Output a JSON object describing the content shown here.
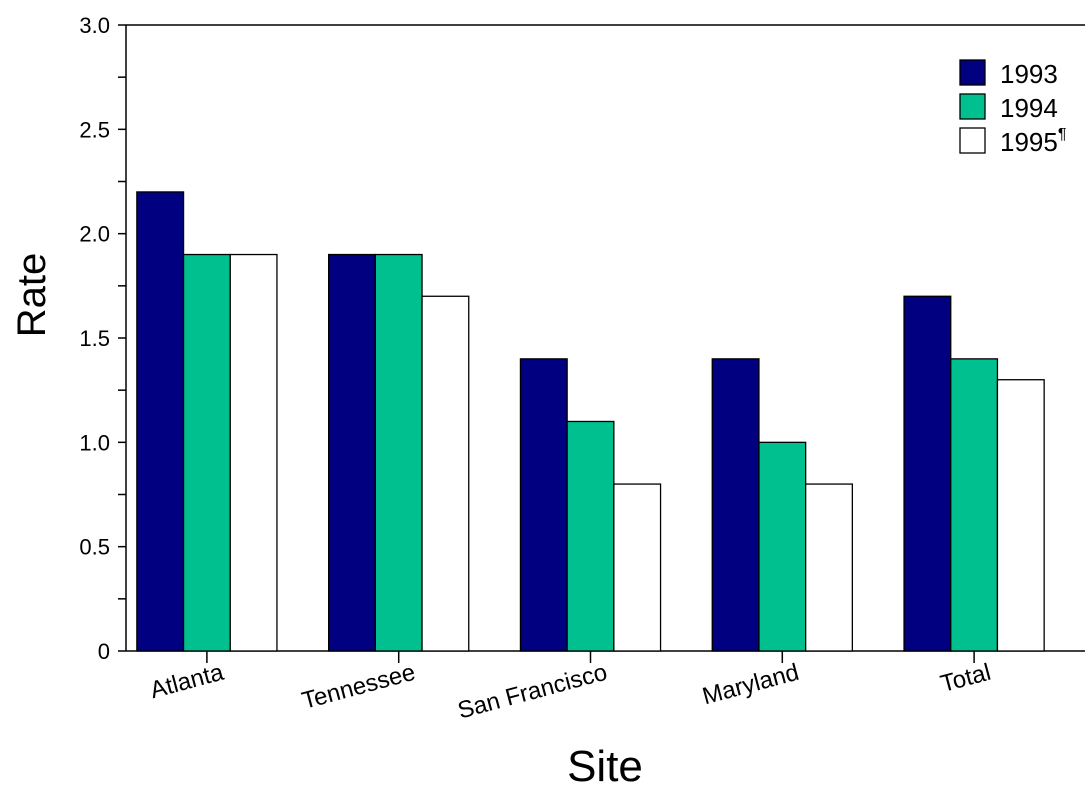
{
  "chart_data": {
    "type": "bar",
    "title": "",
    "xlabel": "Site",
    "ylabel": "Rate",
    "categories": [
      "Atlanta",
      "Tennessee",
      "San Francisco",
      "Maryland",
      "Total"
    ],
    "series": [
      {
        "name": "1993",
        "color": "#000080",
        "values": [
          2.2,
          1.9,
          1.4,
          1.4,
          1.7
        ]
      },
      {
        "name": "1994",
        "color": "#00c090",
        "values": [
          1.9,
          1.9,
          1.1,
          1.0,
          1.4
        ]
      },
      {
        "name": "1995",
        "name_suffix": "¶",
        "color": "#ffffff",
        "values": [
          1.9,
          1.7,
          0.8,
          0.8,
          1.3
        ]
      }
    ],
    "ylim": [
      0,
      3.0
    ],
    "yticks": [
      "0",
      "0.5",
      "1.0",
      "1.5",
      "2.0",
      "2.5",
      "3.0"
    ],
    "grid": false,
    "legend_position": "top-right"
  }
}
